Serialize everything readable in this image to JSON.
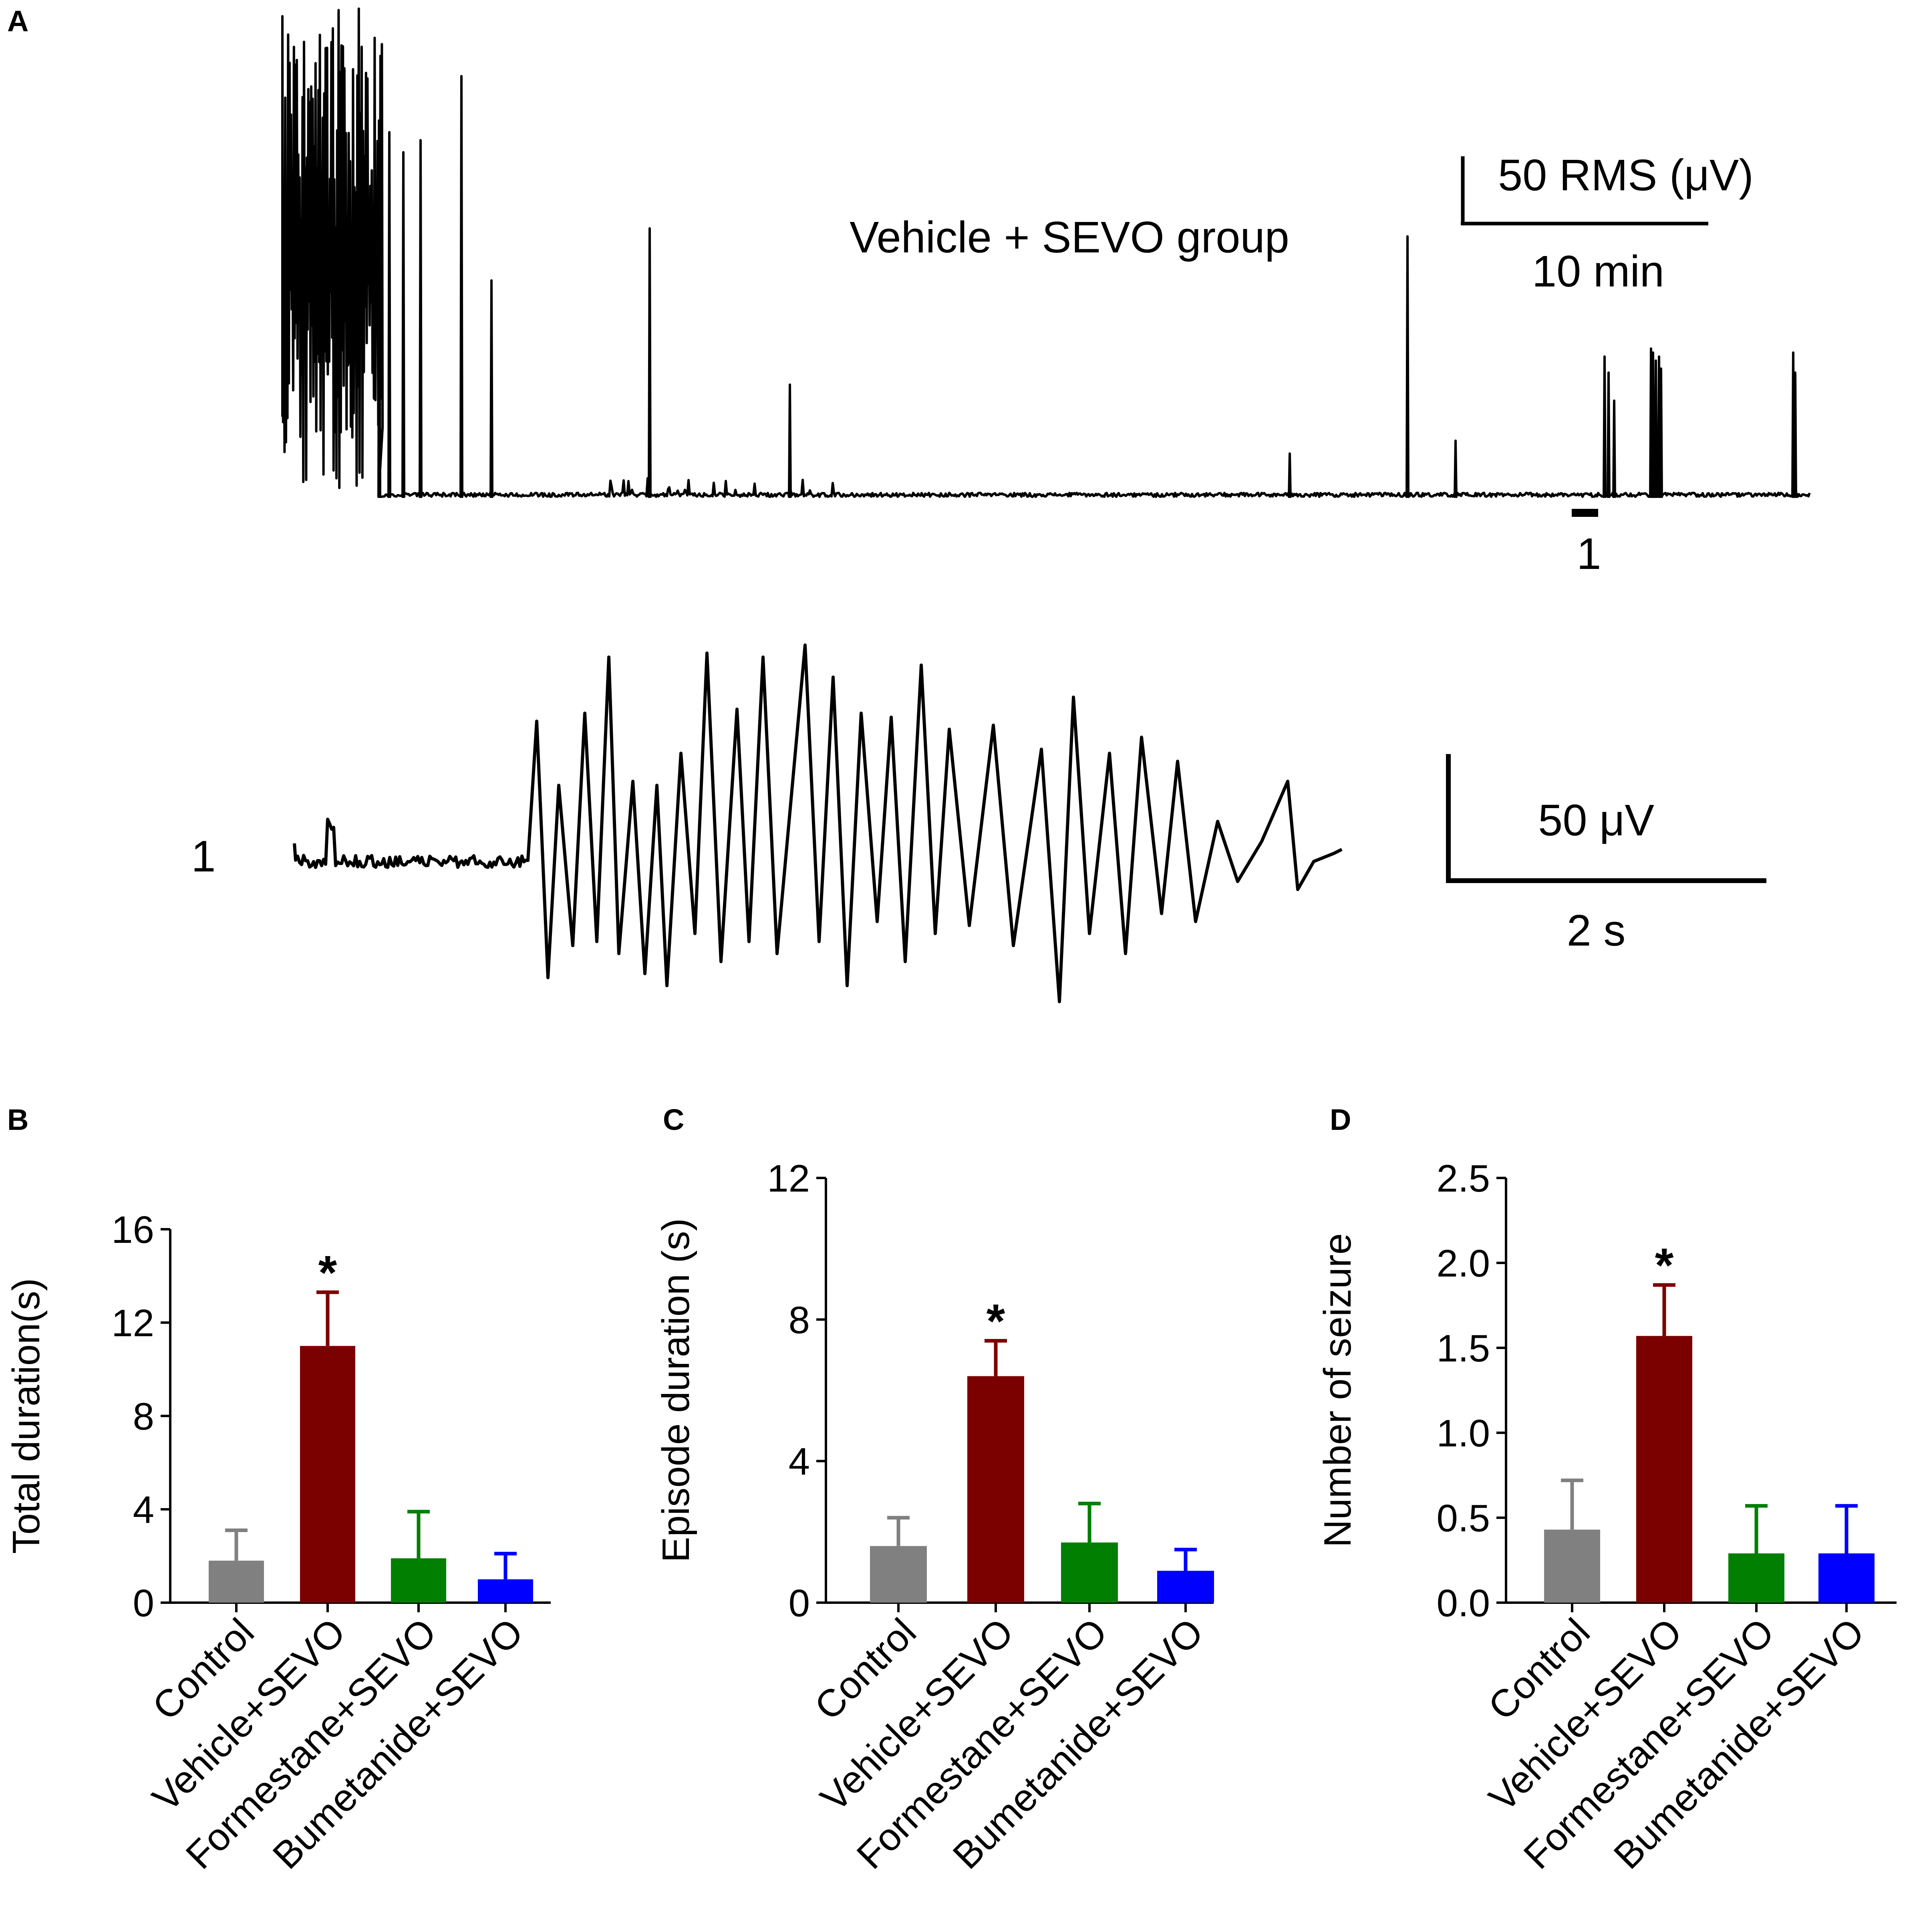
{
  "panel_a": {
    "letter": "A",
    "group_label": "Vehicle + SEVO group",
    "rms_scalebar_label": "50 RMS (μV)",
    "time_scalebar_label": "10 min",
    "segment_marker_label": "1",
    "trace_label": "1",
    "raw_amplitude_label": "50 μV",
    "raw_time_label": "2 s"
  },
  "chart_data": [
    {
      "panel": "B",
      "type": "bar",
      "title": "",
      "xlabel": "",
      "ylabel": "Total duration(s)",
      "categories": [
        "Control",
        "Vehicle+SEVO",
        "Formestane+SEVO",
        "Bumetanide+SEVO"
      ],
      "values": [
        1.8,
        11.0,
        1.9,
        1.0
      ],
      "errors": [
        1.3,
        2.3,
        2.0,
        1.1
      ],
      "colors": [
        "#808080",
        "#7b0000",
        "#007f00",
        "#0000ff"
      ],
      "significance": [
        "",
        "*",
        "",
        ""
      ],
      "ylim": [
        0,
        16
      ],
      "yticks": [
        0,
        4,
        8,
        12,
        16
      ],
      "ytick_labels": [
        "0",
        "4",
        "8",
        "12",
        "16"
      ]
    },
    {
      "panel": "C",
      "type": "bar",
      "title": "",
      "xlabel": "",
      "ylabel": "Episode duration (s)",
      "categories": [
        "Control",
        "Vehicle+SEVO",
        "Formestane+SEVO",
        "Bumetanide+SEVO"
      ],
      "values": [
        1.6,
        6.4,
        1.7,
        0.9
      ],
      "errors": [
        0.8,
        1.0,
        1.1,
        0.6
      ],
      "colors": [
        "#808080",
        "#7b0000",
        "#007f00",
        "#0000ff"
      ],
      "significance": [
        "",
        "*",
        "",
        ""
      ],
      "ylim": [
        0,
        12
      ],
      "yticks": [
        0,
        4,
        8,
        12
      ],
      "ytick_labels": [
        "0",
        "4",
        "8",
        "12"
      ]
    },
    {
      "panel": "D",
      "type": "bar",
      "title": "",
      "xlabel": "",
      "ylabel": "Number of seizure",
      "categories": [
        "Control",
        "Vehicle+SEVO",
        "Formestane+SEVO",
        "Bumetanide+SEVO"
      ],
      "values": [
        0.43,
        1.57,
        0.29,
        0.29
      ],
      "errors": [
        0.29,
        0.3,
        0.28,
        0.28
      ],
      "colors": [
        "#808080",
        "#7b0000",
        "#007f00",
        "#0000ff"
      ],
      "significance": [
        "",
        "*",
        "",
        ""
      ],
      "ylim": [
        0,
        2.5
      ],
      "yticks": [
        0,
        0.5,
        1.0,
        1.5,
        2.0,
        2.5
      ],
      "ytick_labels": [
        "0.0",
        "0.5",
        "1.0",
        "1.5",
        "2.0",
        "2.5"
      ]
    }
  ]
}
